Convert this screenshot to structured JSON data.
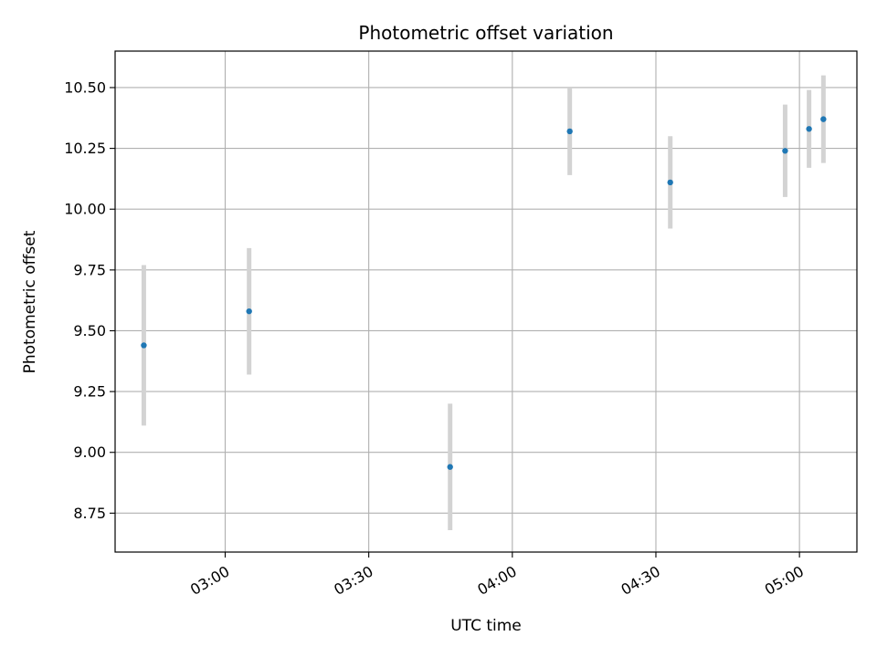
{
  "chart_data": {
    "type": "scatter",
    "title": "Photometric offset variation",
    "xlabel": "UTC time",
    "ylabel": "Photometric offset",
    "x_ticks": [
      "03:00",
      "03:30",
      "04:00",
      "04:30",
      "05:00"
    ],
    "y_ticks": [
      "8.75",
      "9.00",
      "9.25",
      "9.50",
      "9.75",
      "10.00",
      "10.25",
      "10.50"
    ],
    "xlim": [
      "02:37",
      "05:12"
    ],
    "ylim": [
      8.59,
      10.65
    ],
    "grid": true,
    "colors": {
      "marker": "#1f77b4",
      "errorbar": "#d3d3d3",
      "grid": "#b0b0b0"
    },
    "points": [
      {
        "x": "02:43",
        "y": 9.44,
        "yerr": 0.33
      },
      {
        "x": "03:05",
        "y": 9.58,
        "yerr": 0.26
      },
      {
        "x": "03:47",
        "y": 8.94,
        "yerr": 0.26
      },
      {
        "x": "04:12",
        "y": 10.32,
        "yerr": 0.18
      },
      {
        "x": "04:33",
        "y": 10.11,
        "yerr": 0.19
      },
      {
        "x": "04:57",
        "y": 10.24,
        "yerr": 0.19
      },
      {
        "x": "05:02",
        "y": 10.33,
        "yerr": 0.16
      },
      {
        "x": "05:05",
        "y": 10.37,
        "yerr": 0.18
      }
    ]
  }
}
